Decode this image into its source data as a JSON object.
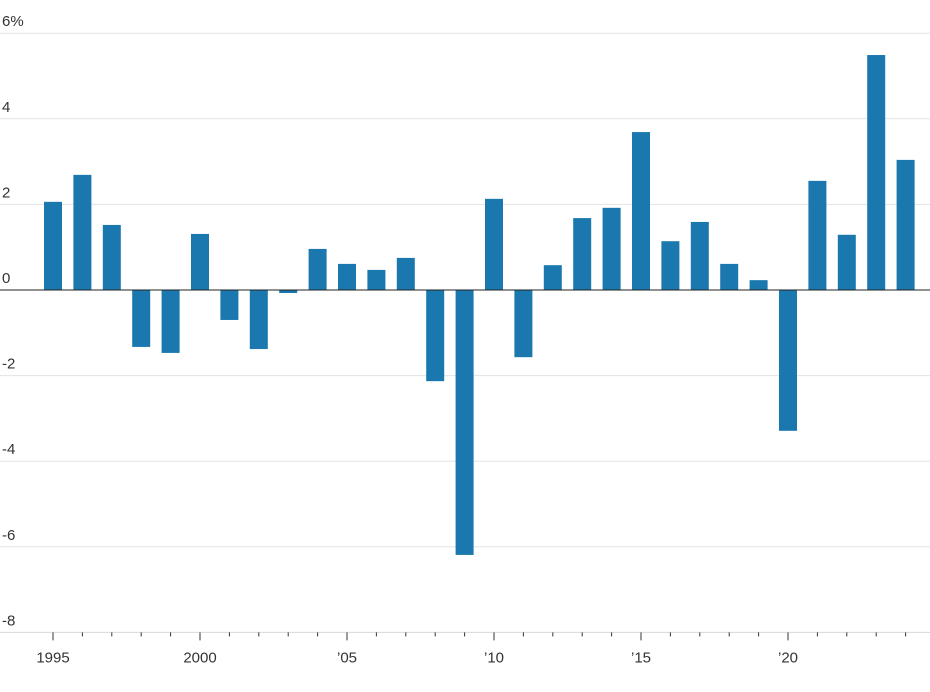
{
  "chart_data": {
    "type": "bar",
    "title": "",
    "xlabel": "",
    "ylabel": "",
    "ylim": [
      -8,
      6
    ],
    "y_ticks": [
      6,
      4,
      2,
      0,
      -2,
      -4,
      -6,
      -8
    ],
    "y_tick_labels": [
      "6%",
      "4",
      "2",
      "0",
      "-2",
      "-4",
      "-6",
      "-8"
    ],
    "grid": true,
    "bar_color": "#1a78ae",
    "categories": [
      1995,
      1996,
      1997,
      1998,
      1999,
      2000,
      2001,
      2002,
      2003,
      2004,
      2005,
      2006,
      2007,
      2008,
      2009,
      2010,
      2011,
      2012,
      2013,
      2014,
      2015,
      2016,
      2017,
      2018,
      2019,
      2020,
      2021,
      2022,
      2023,
      2024
    ],
    "values": [
      2.06,
      2.69,
      1.52,
      -1.33,
      -1.47,
      1.31,
      -0.7,
      -1.38,
      -0.07,
      0.96,
      0.61,
      0.47,
      0.75,
      -2.13,
      -6.19,
      2.13,
      -1.57,
      0.58,
      1.68,
      1.92,
      3.69,
      1.14,
      1.59,
      0.61,
      0.23,
      -3.29,
      2.55,
      1.29,
      5.49,
      3.04
    ],
    "x_tick_labels": [
      {
        "year": 1995,
        "label": "1995"
      },
      {
        "year": 2000,
        "label": "2000"
      },
      {
        "year": 2005,
        "label": "’05"
      },
      {
        "year": 2010,
        "label": "’10"
      },
      {
        "year": 2015,
        "label": "’15"
      },
      {
        "year": 2020,
        "label": "’20"
      }
    ]
  }
}
